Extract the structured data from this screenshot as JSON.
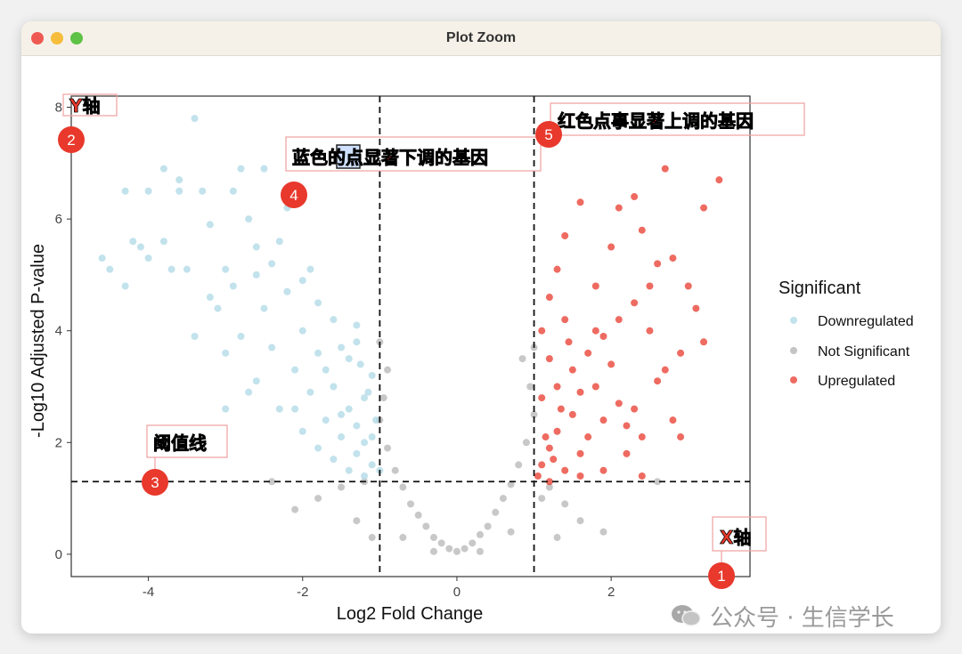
{
  "window": {
    "title": "Plot Zoom"
  },
  "chart_data": {
    "type": "scatter",
    "title": "",
    "xlabel": "Log2 Fold Change",
    "ylabel": "-Log10 Adjusted P-value",
    "xlim": [
      -5,
      3.8
    ],
    "ylim": [
      -0.4,
      8.2
    ],
    "x_ticks": [
      -4,
      -2,
      0,
      2
    ],
    "y_ticks": [
      0,
      2,
      4,
      6,
      8
    ],
    "thresholds": {
      "x": [
        -1,
        1
      ],
      "y": 1.3
    },
    "legend": {
      "title": "Significant",
      "placement": "right",
      "entries": [
        "Downregulated",
        "Not Significant",
        "Upregulated"
      ]
    },
    "series": [
      {
        "name": "Downregulated",
        "color": "#add8e6",
        "points": [
          [
            -4.6,
            5.3
          ],
          [
            -4.5,
            5.1
          ],
          [
            -4.3,
            4.8
          ],
          [
            -4.3,
            6.5
          ],
          [
            -4.0,
            6.5
          ],
          [
            -4.2,
            5.6
          ],
          [
            -4.1,
            5.5
          ],
          [
            -4.0,
            5.3
          ],
          [
            -3.8,
            6.9
          ],
          [
            -3.6,
            6.7
          ],
          [
            -3.4,
            7.8
          ],
          [
            -3.6,
            6.5
          ],
          [
            -3.8,
            5.6
          ],
          [
            -3.7,
            5.1
          ],
          [
            -3.5,
            5.1
          ],
          [
            -3.3,
            6.5
          ],
          [
            -3.2,
            5.9
          ],
          [
            -3.0,
            5.1
          ],
          [
            -3.1,
            4.4
          ],
          [
            -2.9,
            6.5
          ],
          [
            -2.8,
            6.9
          ],
          [
            -2.7,
            6.0
          ],
          [
            -2.6,
            5.5
          ],
          [
            -2.5,
            6.9
          ],
          [
            -2.4,
            5.2
          ],
          [
            -2.2,
            6.2
          ],
          [
            -2.1,
            6.3
          ],
          [
            -3.4,
            3.9
          ],
          [
            -3.0,
            3.6
          ],
          [
            -2.8,
            3.9
          ],
          [
            -2.6,
            3.1
          ],
          [
            -2.3,
            2.6
          ],
          [
            -2.0,
            2.2
          ],
          [
            -2.5,
            4.4
          ],
          [
            -2.2,
            4.7
          ],
          [
            -2.0,
            4.0
          ],
          [
            -1.8,
            3.6
          ],
          [
            -1.6,
            3.0
          ],
          [
            -1.4,
            2.6
          ],
          [
            -1.2,
            2.0
          ],
          [
            -1.1,
            1.6
          ],
          [
            -1.3,
            1.8
          ],
          [
            -1.5,
            2.1
          ],
          [
            -1.7,
            2.4
          ],
          [
            -1.9,
            2.9
          ],
          [
            -2.1,
            3.3
          ],
          [
            -2.4,
            3.7
          ],
          [
            -1.3,
            3.8
          ],
          [
            -1.1,
            3.2
          ],
          [
            -1.2,
            2.8
          ],
          [
            -1.4,
            3.5
          ],
          [
            -1.6,
            4.2
          ],
          [
            -1.8,
            4.5
          ],
          [
            -1.9,
            5.1
          ],
          [
            -2.3,
            5.6
          ],
          [
            -2.0,
            4.9
          ],
          [
            -1.5,
            2.5
          ],
          [
            -1.3,
            2.3
          ],
          [
            -1.1,
            2.1
          ],
          [
            -1.4,
            1.5
          ],
          [
            -1.6,
            1.7
          ],
          [
            -1.8,
            1.9
          ],
          [
            -2.1,
            2.6
          ],
          [
            -2.7,
            2.9
          ],
          [
            -3.0,
            2.6
          ],
          [
            -2.9,
            4.8
          ],
          [
            -3.2,
            4.6
          ],
          [
            -2.6,
            5.0
          ],
          [
            -1.7,
            3.3
          ],
          [
            -1.5,
            3.7
          ],
          [
            -1.3,
            4.1
          ],
          [
            -1.2,
            1.4
          ],
          [
            -1.0,
            1.5
          ],
          [
            -1.05,
            2.4
          ],
          [
            -1.15,
            2.9
          ],
          [
            -1.25,
            3.4
          ]
        ]
      },
      {
        "name": "Not Significant",
        "color": "#bebebe",
        "points": [
          [
            0.0,
            0.05
          ],
          [
            -0.1,
            0.1
          ],
          [
            0.1,
            0.1
          ],
          [
            -0.2,
            0.2
          ],
          [
            0.2,
            0.2
          ],
          [
            -0.3,
            0.3
          ],
          [
            0.3,
            0.35
          ],
          [
            -0.4,
            0.5
          ],
          [
            0.4,
            0.5
          ],
          [
            -0.5,
            0.7
          ],
          [
            0.5,
            0.75
          ],
          [
            -0.6,
            0.9
          ],
          [
            0.6,
            1.0
          ],
          [
            -0.7,
            1.2
          ],
          [
            0.7,
            1.25
          ],
          [
            -0.8,
            1.5
          ],
          [
            0.8,
            1.6
          ],
          [
            -0.9,
            1.9
          ],
          [
            0.9,
            2.0
          ],
          [
            -1.0,
            2.4
          ],
          [
            1.0,
            2.5
          ],
          [
            -0.95,
            2.8
          ],
          [
            0.95,
            3.0
          ],
          [
            -0.9,
            3.3
          ],
          [
            0.85,
            3.5
          ],
          [
            -1.0,
            3.8
          ],
          [
            1.0,
            3.7
          ],
          [
            -1.5,
            1.2
          ],
          [
            -1.8,
            1.0
          ],
          [
            -2.1,
            0.8
          ],
          [
            -1.3,
            0.6
          ],
          [
            -1.1,
            0.3
          ],
          [
            -2.4,
            1.3
          ],
          [
            1.2,
            1.2
          ],
          [
            1.4,
            0.9
          ],
          [
            1.6,
            0.6
          ],
          [
            1.9,
            0.4
          ],
          [
            1.3,
            0.3
          ],
          [
            2.6,
            1.3
          ],
          [
            -0.7,
            0.3
          ],
          [
            0.7,
            0.4
          ],
          [
            -0.3,
            0.05
          ],
          [
            0.3,
            0.05
          ],
          [
            -1.2,
            1.3
          ],
          [
            1.1,
            1.0
          ]
        ]
      },
      {
        "name": "Upregulated",
        "color": "#e8392c",
        "points": [
          [
            1.1,
            1.6
          ],
          [
            1.2,
            1.9
          ],
          [
            1.3,
            2.2
          ],
          [
            1.5,
            2.5
          ],
          [
            1.4,
            1.5
          ],
          [
            1.6,
            1.8
          ],
          [
            1.7,
            2.1
          ],
          [
            1.9,
            2.4
          ],
          [
            2.1,
            2.7
          ],
          [
            1.3,
            3.0
          ],
          [
            1.5,
            3.3
          ],
          [
            1.7,
            3.6
          ],
          [
            1.9,
            3.9
          ],
          [
            2.1,
            4.2
          ],
          [
            2.3,
            4.5
          ],
          [
            2.5,
            4.8
          ],
          [
            2.6,
            5.2
          ],
          [
            2.8,
            5.3
          ],
          [
            2.7,
            6.9
          ],
          [
            3.4,
            6.7
          ],
          [
            3.2,
            6.2
          ],
          [
            2.3,
            6.4
          ],
          [
            2.1,
            6.2
          ],
          [
            1.6,
            6.3
          ],
          [
            1.4,
            5.7
          ],
          [
            1.3,
            5.1
          ],
          [
            1.2,
            4.6
          ],
          [
            1.1,
            4.0
          ],
          [
            1.2,
            3.5
          ],
          [
            2.9,
            3.6
          ],
          [
            3.2,
            3.8
          ],
          [
            3.1,
            4.4
          ],
          [
            2.6,
            3.1
          ],
          [
            2.3,
            2.6
          ],
          [
            2.4,
            2.1
          ],
          [
            2.8,
            2.4
          ],
          [
            2.9,
            2.1
          ],
          [
            1.9,
            1.5
          ],
          [
            1.6,
            1.4
          ],
          [
            2.4,
            1.4
          ],
          [
            2.2,
            1.8
          ],
          [
            1.8,
            4.8
          ],
          [
            2.0,
            5.5
          ],
          [
            2.4,
            5.8
          ],
          [
            1.8,
            3.0
          ],
          [
            1.4,
            4.2
          ],
          [
            1.6,
            2.9
          ],
          [
            1.1,
            2.8
          ],
          [
            1.15,
            2.1
          ],
          [
            1.25,
            1.7
          ],
          [
            1.35,
            2.6
          ],
          [
            1.45,
            3.8
          ],
          [
            1.05,
            1.4
          ],
          [
            1.2,
            1.3
          ],
          [
            2.0,
            3.4
          ],
          [
            2.2,
            2.3
          ],
          [
            2.5,
            4.0
          ],
          [
            2.7,
            3.3
          ],
          [
            3.0,
            4.8
          ],
          [
            1.8,
            4.0
          ]
        ]
      }
    ]
  },
  "annotations": [
    {
      "label": "X轴",
      "number": "1"
    },
    {
      "label": "Y轴",
      "number": "2"
    },
    {
      "label": "阈值线",
      "number": "3"
    },
    {
      "label": "蓝色的点显著下调的基因",
      "number": "4"
    },
    {
      "label": "红色点事显著上调的基因",
      "number": "5"
    }
  ],
  "watermark": {
    "text": "公众号 · 生信学长"
  }
}
